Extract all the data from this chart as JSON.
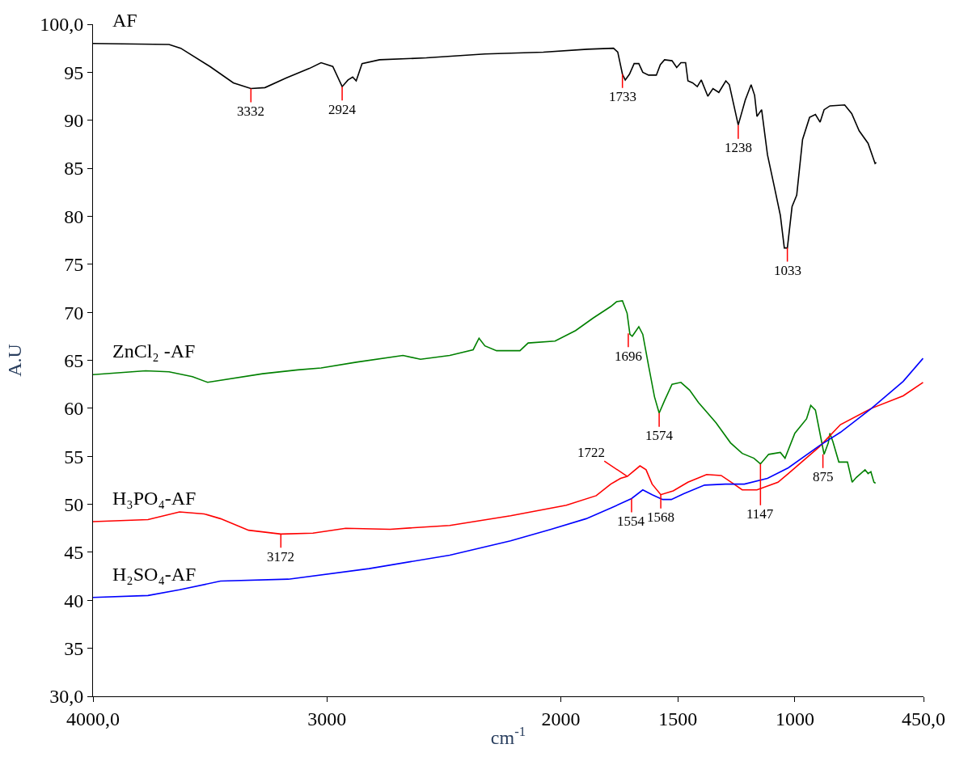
{
  "chart_data": {
    "type": "line",
    "xlabel": "cm$^{-1}$",
    "ylabel": "A.U",
    "xlim": [
      4000,
      450
    ],
    "xticks": [
      {
        "value": 4000,
        "label": "4000,0"
      },
      3000,
      2000,
      1500,
      1000,
      {
        "value": 450,
        "label": "450,0"
      }
    ],
    "ylim": [
      30,
      100
    ],
    "yticks": [
      {
        "value": 30,
        "label": "30,0"
      },
      35,
      40,
      45,
      50,
      55,
      60,
      65,
      70,
      75,
      80,
      85,
      90,
      95,
      {
        "value": 100,
        "label": "100,0"
      }
    ],
    "legend": false,
    "marker": "none",
    "line_style": "solid",
    "series": [
      {
        "name": "AF",
        "color": "#000000",
        "x": [
          4000,
          3675,
          3625,
          3500,
          3400,
          3325,
          3265,
          3175,
          3075,
          3025,
          2975,
          2935,
          2910,
          2890,
          2875,
          2850,
          2775,
          2575,
          2325,
          2075,
          1887,
          1775,
          1757,
          1737,
          1725,
          1707,
          1687,
          1667,
          1650,
          1625,
          1592,
          1575,
          1557,
          1525,
          1505,
          1487,
          1467,
          1457,
          1437,
          1417,
          1400,
          1372,
          1350,
          1325,
          1295,
          1280,
          1242,
          1212,
          1187,
          1172,
          1162,
          1142,
          1117,
          1087,
          1062,
          1045,
          1032,
          1012,
          992,
          967,
          937,
          912,
          892,
          875,
          850,
          787,
          757,
          725,
          687,
          657,
          652
        ],
        "values": [
          98.0,
          97.9,
          97.5,
          95.6,
          93.9,
          93.3,
          93.4,
          94.4,
          95.4,
          96.0,
          95.6,
          93.5,
          94.2,
          94.5,
          94.1,
          95.9,
          96.3,
          96.5,
          96.9,
          97.1,
          97.4,
          97.5,
          97.1,
          94.8,
          94.2,
          94.8,
          95.9,
          95.9,
          95.0,
          94.7,
          94.7,
          95.8,
          96.3,
          96.2,
          95.5,
          96.0,
          96.0,
          94.1,
          93.9,
          93.5,
          94.2,
          92.5,
          93.3,
          92.9,
          94.1,
          93.7,
          89.5,
          92.1,
          93.7,
          92.6,
          90.4,
          91.1,
          86.4,
          83.0,
          80.1,
          76.7,
          76.7,
          81.0,
          82.2,
          88.0,
          90.3,
          90.6,
          89.8,
          91.1,
          91.5,
          91.6,
          90.7,
          88.9,
          87.6,
          85.5,
          85.6
        ]
      },
      {
        "name": "ZnCl₂ -AF",
        "color": "#008000",
        "x": [
          4000,
          3775,
          3675,
          3575,
          3510,
          3275,
          3125,
          3025,
          2875,
          2675,
          2600,
          2475,
          2375,
          2350,
          2325,
          2275,
          2175,
          2140,
          2025,
          1937,
          1862,
          1787,
          1762,
          1737,
          1717,
          1705,
          1695,
          1667,
          1650,
          1625,
          1600,
          1580,
          1557,
          1525,
          1487,
          1450,
          1412,
          1337,
          1275,
          1225,
          1175,
          1147,
          1112,
          1062,
          1042,
          1000,
          950,
          932,
          912,
          875,
          857,
          850,
          837,
          812,
          775,
          755,
          737,
          700,
          687,
          675,
          662,
          655
        ],
        "values": [
          63.5,
          63.9,
          63.8,
          63.3,
          62.7,
          63.6,
          64.0,
          64.2,
          64.8,
          65.5,
          65.1,
          65.5,
          66.1,
          67.3,
          66.5,
          66.0,
          66.0,
          66.8,
          67.0,
          68.1,
          69.4,
          70.6,
          71.1,
          71.2,
          69.9,
          67.7,
          67.5,
          68.5,
          67.7,
          64.4,
          61.2,
          59.5,
          60.8,
          62.5,
          62.7,
          61.9,
          60.6,
          58.5,
          56.4,
          55.3,
          54.8,
          54.2,
          55.2,
          55.4,
          54.8,
          57.4,
          58.9,
          60.3,
          59.8,
          55.2,
          56.4,
          57.4,
          56.5,
          54.4,
          54.4,
          52.3,
          52.8,
          53.6,
          53.2,
          53.4,
          52.3,
          52.2
        ]
      },
      {
        "name": "H₃PO₄-AF",
        "color": "#ff0000",
        "x": [
          4000,
          3765,
          3630,
          3525,
          3455,
          3335,
          3197,
          3060,
          2920,
          2730,
          2475,
          2215,
          1977,
          1849,
          1787,
          1745,
          1716,
          1662,
          1636,
          1610,
          1573,
          1520,
          1457,
          1377,
          1315,
          1260,
          1225,
          1162,
          1072,
          1028,
          895,
          805,
          672,
          537,
          452
        ],
        "values": [
          48.2,
          48.4,
          49.2,
          49.0,
          48.5,
          47.3,
          46.9,
          47.0,
          47.5,
          47.4,
          47.8,
          48.8,
          49.9,
          50.9,
          52.1,
          52.7,
          52.9,
          54.0,
          53.6,
          52.1,
          51.0,
          51.4,
          52.3,
          53.1,
          53.0,
          52.1,
          51.5,
          51.5,
          52.3,
          53.2,
          56.0,
          58.3,
          60.0,
          61.3,
          62.7
        ]
      },
      {
        "name": "H₂SO₄-AF",
        "color": "#0000ff",
        "x": [
          4000,
          3765,
          3630,
          3455,
          3165,
          2820,
          2475,
          2215,
          2042,
          1892,
          1787,
          1698,
          1650,
          1610,
          1565,
          1528,
          1475,
          1386,
          1297,
          1216,
          1117,
          1028,
          895,
          805,
          672,
          537,
          452
        ],
        "values": [
          40.3,
          40.5,
          41.1,
          42.0,
          42.2,
          43.3,
          44.7,
          46.2,
          47.4,
          48.5,
          49.6,
          50.6,
          51.5,
          51.0,
          50.5,
          50.5,
          51.1,
          52.0,
          52.1,
          52.1,
          52.7,
          53.8,
          56.1,
          57.5,
          60.0,
          62.8,
          65.2
        ]
      }
    ],
    "annotations": [
      {
        "text": "3332",
        "x": 3325,
        "y": 93.3
      },
      {
        "text": "2924",
        "x": 2935,
        "y": 93.5
      },
      {
        "text": "1733",
        "x": 1737,
        "y": 94.8
      },
      {
        "text": "1238",
        "x": 1242,
        "y": 89.5
      },
      {
        "text": "1033",
        "x": 1032,
        "y": 76.7
      },
      {
        "text": "1696",
        "x": 1712,
        "y": 67.8
      },
      {
        "text": "1574",
        "x": 1580,
        "y": 59.5
      },
      {
        "text": "1147",
        "x": 1147,
        "y": 54.2
      },
      {
        "text": "875",
        "x": 880,
        "y": 55.2
      },
      {
        "text": "3172",
        "x": 3197,
        "y": 46.9
      },
      {
        "text": "1722",
        "x": 1716,
        "y": 52.9
      },
      {
        "text": "1568",
        "x": 1573,
        "y": 51.0
      },
      {
        "text": "1554",
        "x": 1698,
        "y": 50.6
      }
    ]
  }
}
